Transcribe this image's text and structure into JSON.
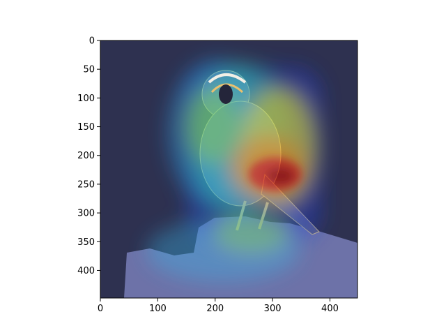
{
  "chart_data": {
    "type": "heatmap",
    "title": "",
    "xlabel": "",
    "ylabel": "",
    "xlim": [
      0,
      448
    ],
    "ylim": [
      448,
      0
    ],
    "y_inverted": true,
    "grid": false,
    "legend": "none",
    "xticks": [
      0,
      100,
      200,
      300,
      400
    ],
    "yticks": [
      0,
      50,
      100,
      150,
      200,
      250,
      300,
      350,
      400
    ],
    "colormap": "jet",
    "background_image": "bird perched on a rock overlaid with an attention heatmap",
    "hotspots": [
      {
        "x": 300,
        "y": 245,
        "rx": 70,
        "ry": 40,
        "intensity": 1.0
      },
      {
        "x": 330,
        "y": 215,
        "rx": 80,
        "ry": 90,
        "intensity": 0.65
      },
      {
        "x": 250,
        "y": 170,
        "rx": 80,
        "ry": 90,
        "intensity": 0.45
      },
      {
        "x": 340,
        "y": 340,
        "rx": 70,
        "ry": 35,
        "intensity": 0.4
      },
      {
        "x": 290,
        "y": 360,
        "rx": 110,
        "ry": 50,
        "intensity": 0.35
      }
    ],
    "colors": {
      "background": "#2e3150",
      "rock": "#6d72a8",
      "bird": "#5a5e86",
      "axis": "#000000"
    }
  }
}
